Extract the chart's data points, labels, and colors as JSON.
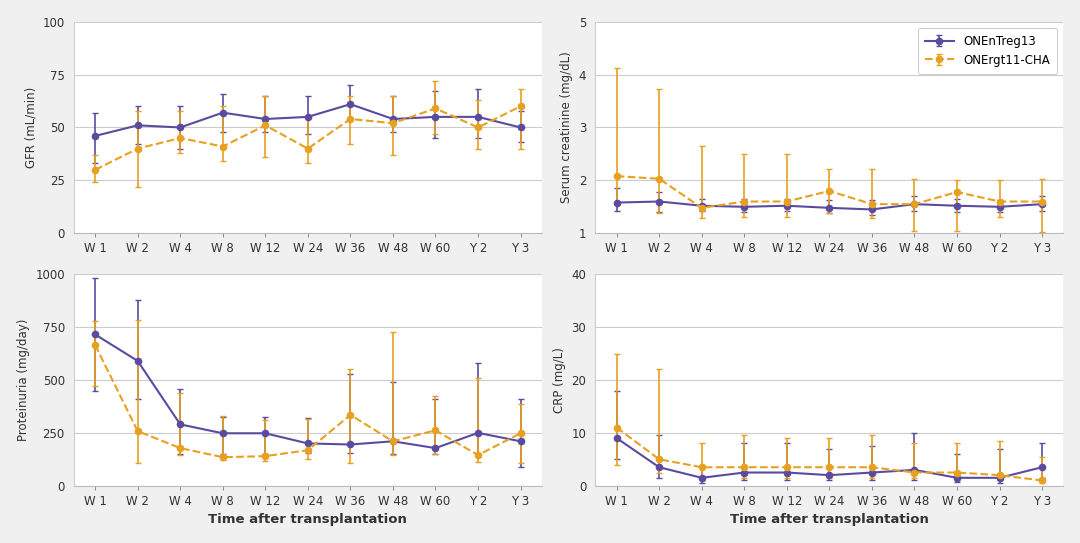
{
  "x_labels": [
    "W 1",
    "W 2",
    "W 4",
    "W 8",
    "W 12",
    "W 24",
    "W 36",
    "W 48",
    "W 60",
    "Y 2",
    "Y 3"
  ],
  "color_purple": "#5B4BA0",
  "color_orange": "#E8A020",
  "gfr_purple_y": [
    46,
    51,
    50,
    57,
    54,
    55,
    61,
    54,
    55,
    55,
    50
  ],
  "gfr_purple_lo": [
    33,
    42,
    40,
    48,
    48,
    47,
    54,
    48,
    45,
    45,
    43
  ],
  "gfr_purple_hi": [
    57,
    60,
    60,
    66,
    65,
    65,
    70,
    65,
    67,
    68,
    58
  ],
  "gfr_orange_y": [
    30,
    40,
    45,
    41,
    51,
    40,
    54,
    52,
    59,
    50,
    60
  ],
  "gfr_orange_lo": [
    24,
    22,
    38,
    34,
    36,
    33,
    42,
    37,
    47,
    40,
    40
  ],
  "gfr_orange_hi": [
    37,
    58,
    58,
    60,
    65,
    55,
    65,
    65,
    72,
    63,
    68
  ],
  "creat_purple_y": [
    1.58,
    1.6,
    1.52,
    1.5,
    1.52,
    1.48,
    1.45,
    1.55,
    1.52,
    1.5,
    1.55
  ],
  "creat_purple_lo": [
    1.42,
    1.4,
    1.42,
    1.4,
    1.42,
    1.38,
    1.35,
    1.42,
    1.4,
    1.4,
    1.43
  ],
  "creat_purple_hi": [
    1.85,
    1.78,
    1.65,
    1.65,
    1.65,
    1.63,
    1.62,
    1.7,
    1.65,
    1.62,
    1.7
  ],
  "creat_orange_y": [
    2.08,
    2.03,
    1.48,
    1.6,
    1.6,
    1.8,
    1.55,
    1.55,
    1.78,
    1.6,
    1.6
  ],
  "creat_orange_lo": [
    1.55,
    1.38,
    1.28,
    1.3,
    1.3,
    1.38,
    1.28,
    1.05,
    1.05,
    1.3,
    1.02
  ],
  "creat_orange_hi": [
    4.12,
    3.72,
    2.65,
    2.5,
    2.5,
    2.22,
    2.22,
    2.02,
    2.0,
    2.0,
    2.02
  ],
  "prot_purple_y": [
    715,
    590,
    290,
    248,
    248,
    200,
    195,
    210,
    178,
    250,
    210
  ],
  "prot_purple_lo": [
    450,
    410,
    148,
    148,
    148,
    155,
    155,
    148,
    148,
    148,
    90
  ],
  "prot_purple_hi": [
    980,
    880,
    455,
    325,
    325,
    320,
    530,
    490,
    410,
    580,
    410
  ],
  "prot_orange_y": [
    665,
    258,
    178,
    135,
    140,
    168,
    335,
    210,
    262,
    145,
    248
  ],
  "prot_orange_lo": [
    470,
    108,
    145,
    120,
    118,
    128,
    108,
    145,
    148,
    110,
    108
  ],
  "prot_orange_hi": [
    780,
    785,
    440,
    330,
    310,
    315,
    550,
    725,
    425,
    510,
    388
  ],
  "crp_purple_y": [
    9.0,
    3.5,
    1.5,
    2.5,
    2.5,
    2.0,
    2.5,
    3.0,
    1.5,
    1.5,
    3.5
  ],
  "crp_purple_lo": [
    5.0,
    1.5,
    0.5,
    1.0,
    1.0,
    1.0,
    1.0,
    1.0,
    0.8,
    0.5,
    1.5
  ],
  "crp_purple_hi": [
    18.0,
    9.5,
    3.5,
    8.0,
    8.0,
    7.0,
    7.5,
    10.0,
    6.0,
    7.0,
    8.0
  ],
  "crp_orange_y": [
    11.0,
    5.0,
    3.5,
    3.5,
    3.5,
    3.5,
    3.5,
    2.5,
    2.5,
    2.0,
    1.0
  ],
  "crp_orange_lo": [
    4.0,
    2.5,
    1.0,
    1.5,
    1.5,
    1.5,
    1.5,
    1.5,
    1.5,
    1.0,
    0.5
  ],
  "crp_orange_hi": [
    25.0,
    22.0,
    8.0,
    9.5,
    9.0,
    9.0,
    9.5,
    8.0,
    8.0,
    8.5,
    5.5
  ],
  "legend_label_purple": "ONEnTreg13",
  "legend_label_orange": "ONErgt11-CHA",
  "xlabel": "Time after transplantation",
  "ylabel_gfr": "GFR (mL/min)",
  "ylabel_creat": "Serum creatinine (mg/dL)",
  "ylabel_prot": "Proteinuria (mg/day)",
  "ylabel_crp": "CRP (mg/L)",
  "gfr_ylim": [
    0,
    100
  ],
  "creat_ylim": [
    1,
    5
  ],
  "prot_ylim": [
    0,
    1000
  ],
  "crp_ylim": [
    0,
    40
  ],
  "gfr_yticks": [
    0,
    25,
    50,
    75,
    100
  ],
  "creat_yticks": [
    1,
    2,
    3,
    4,
    5
  ],
  "prot_yticks": [
    0,
    250,
    500,
    750,
    1000
  ],
  "crp_yticks": [
    0,
    10,
    20,
    30,
    40
  ],
  "bg_color": "#F0F0F0",
  "panel_color": "#FFFFFF"
}
